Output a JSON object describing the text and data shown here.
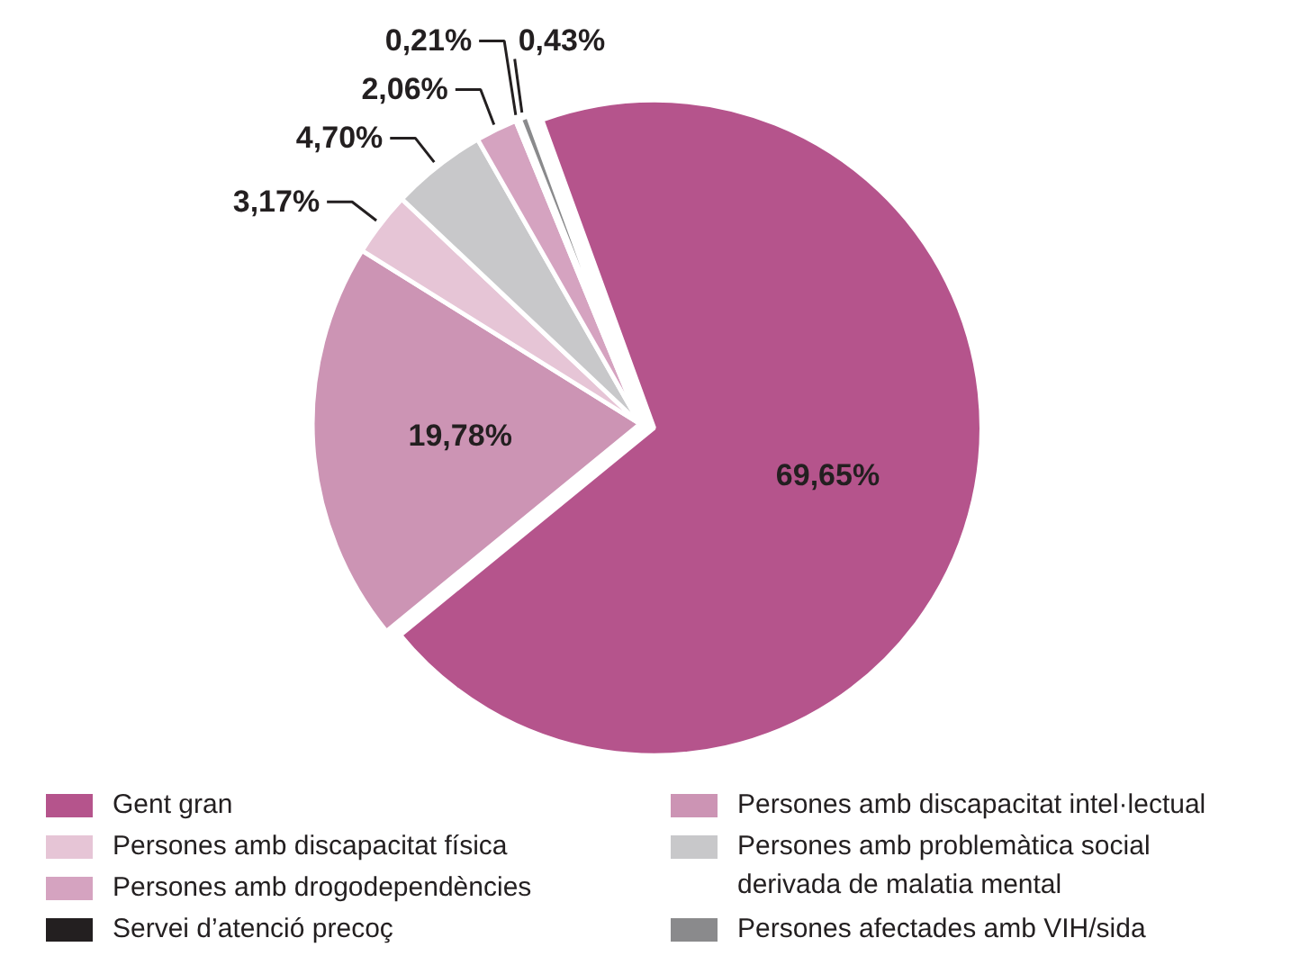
{
  "chart_data": {
    "type": "pie",
    "categories": [
      "Gent gran",
      "Persones amb discapacitat intel·lectual",
      "Persones amb discapacitat física",
      "Persones amb problemàtica social derivada de malatia mental",
      "Persones amb drogodependències",
      "Servei d’atenció precoç",
      "Persones afectades amb VIH/sida"
    ],
    "values": [
      69.65,
      19.78,
      3.17,
      4.7,
      2.06,
      0.21,
      0.43
    ],
    "value_labels": [
      "69,65%",
      "19,78%",
      "3,17%",
      "4,70%",
      "2,06%",
      "0,21%",
      "0,43%"
    ],
    "colors": [
      "#b5548c",
      "#cc94b4",
      "#e6c5d6",
      "#c8c8ca",
      "#d5a3c0",
      "#231f20",
      "#8a8a8c"
    ],
    "legend": "bottom"
  }
}
